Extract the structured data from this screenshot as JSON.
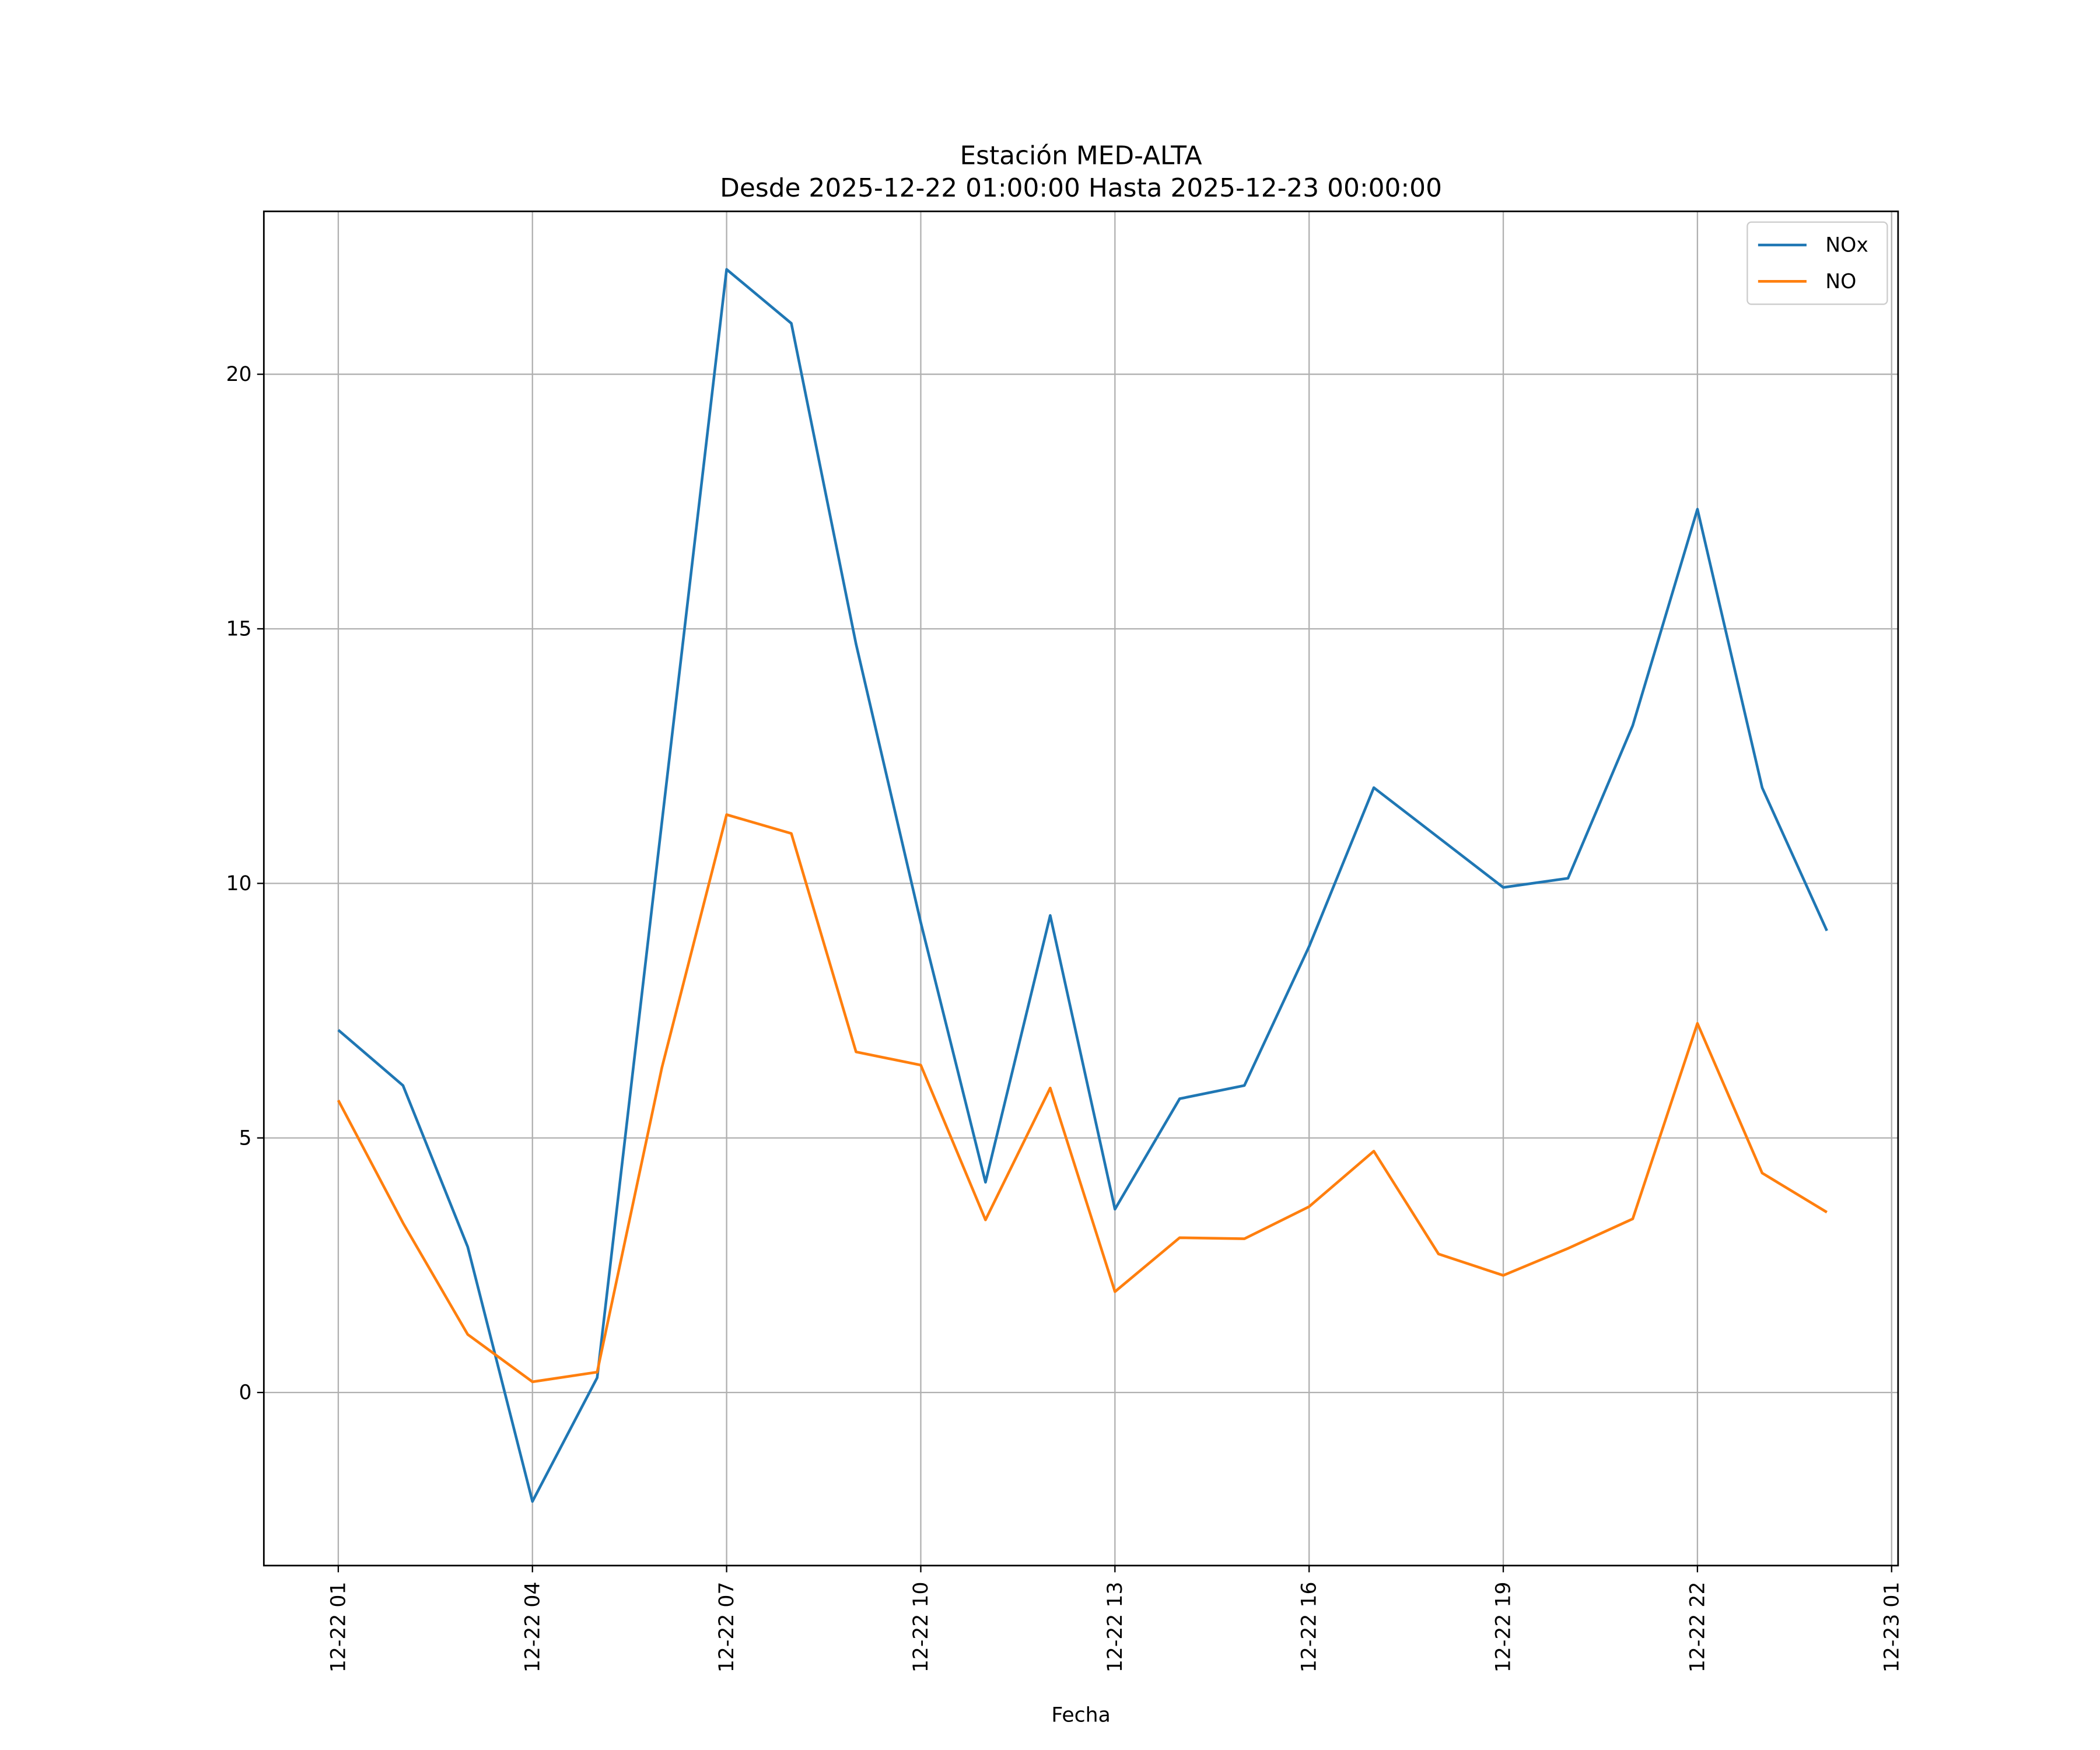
{
  "chart_data": {
    "type": "line",
    "title": "Estación MED-ALTA",
    "subtitle": "Desde 2025-12-22 01:00:00 Hasta 2025-12-23 00:00:00",
    "xlabel": "Fecha",
    "ylabel": "",
    "x": [
      "12-22 01",
      "12-22 02",
      "12-22 03",
      "12-22 04",
      "12-22 05",
      "12-22 06",
      "12-22 07",
      "12-22 08",
      "12-22 09",
      "12-22 10",
      "12-22 11",
      "12-22 12",
      "12-22 13",
      "12-22 14",
      "12-22 15",
      "12-22 16",
      "12-22 17",
      "12-22 18",
      "12-22 19",
      "12-22 20",
      "12-22 21",
      "12-22 22",
      "12-22 23",
      "12-23 00"
    ],
    "x_ticks": [
      "12-22 01",
      "12-22 04",
      "12-22 07",
      "12-22 10",
      "12-22 13",
      "12-22 16",
      "12-22 19",
      "12-22 22",
      "12-23 01"
    ],
    "x_tick_hours": [
      0,
      3,
      6,
      9,
      12,
      15,
      18,
      21,
      24
    ],
    "y_ticks": [
      0,
      5,
      10,
      15,
      20
    ],
    "ylim": [
      -3.4,
      23.2
    ],
    "xlim_hours": [
      -1.15,
      24.1
    ],
    "grid": true,
    "legend_position": "top-right",
    "series": [
      {
        "name": "NOx",
        "color": "#1f77b4",
        "values": [
          7.12,
          6.03,
          2.86,
          -2.14,
          0.29,
          11.2,
          22.06,
          21.0,
          14.7,
          9.23,
          4.13,
          9.37,
          3.6,
          5.77,
          6.03,
          8.76,
          11.88,
          10.9,
          9.92,
          10.1,
          13.1,
          17.35,
          11.88,
          9.07
        ]
      },
      {
        "name": "NO",
        "color": "#ff7f0e",
        "values": [
          5.74,
          3.33,
          1.14,
          0.21,
          0.4,
          6.38,
          11.35,
          10.98,
          6.69,
          6.43,
          3.39,
          5.98,
          1.98,
          3.04,
          3.02,
          3.65,
          4.74,
          2.72,
          2.3,
          2.83,
          3.41,
          7.25,
          4.31,
          3.54
        ]
      }
    ]
  }
}
